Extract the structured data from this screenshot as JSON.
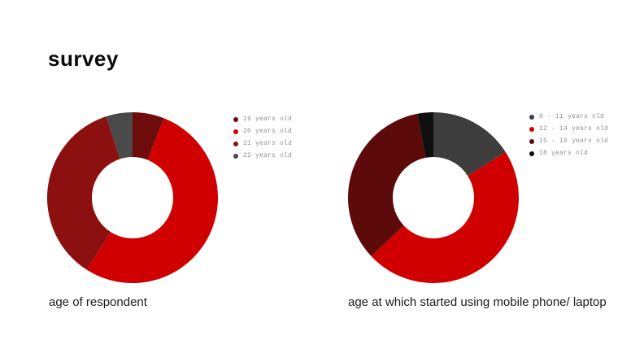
{
  "page": {
    "title": "survey",
    "background_color": "#ffffff",
    "accent_color": "#d10000"
  },
  "chart_data": [
    {
      "type": "pie",
      "donut": true,
      "title": "age of respondent",
      "categories": [
        "19 years old",
        "20 years old",
        "21 years old",
        "22 years old"
      ],
      "values": [
        6,
        53,
        36,
        5
      ],
      "unit": "percent",
      "colors": [
        "#6e0b0b",
        "#d10000",
        "#8d1010",
        "#4a4a4a"
      ],
      "start_angle_deg": 0,
      "direction": "clockwise",
      "legend_position": "right",
      "data_labels": false
    },
    {
      "type": "pie",
      "donut": true,
      "title": "age at which started using mobile phone/ laptop",
      "categories": [
        "9 - 11 years old",
        "12 - 14 years old",
        "15 - 16 years old",
        "18 years old"
      ],
      "values": [
        16,
        47,
        34,
        3
      ],
      "unit": "percent",
      "colors": [
        "#3d3d3d",
        "#d10000",
        "#5c0a0a",
        "#0f0f0f"
      ],
      "start_angle_deg": 0,
      "direction": "clockwise",
      "legend_position": "right",
      "data_labels": false
    }
  ]
}
